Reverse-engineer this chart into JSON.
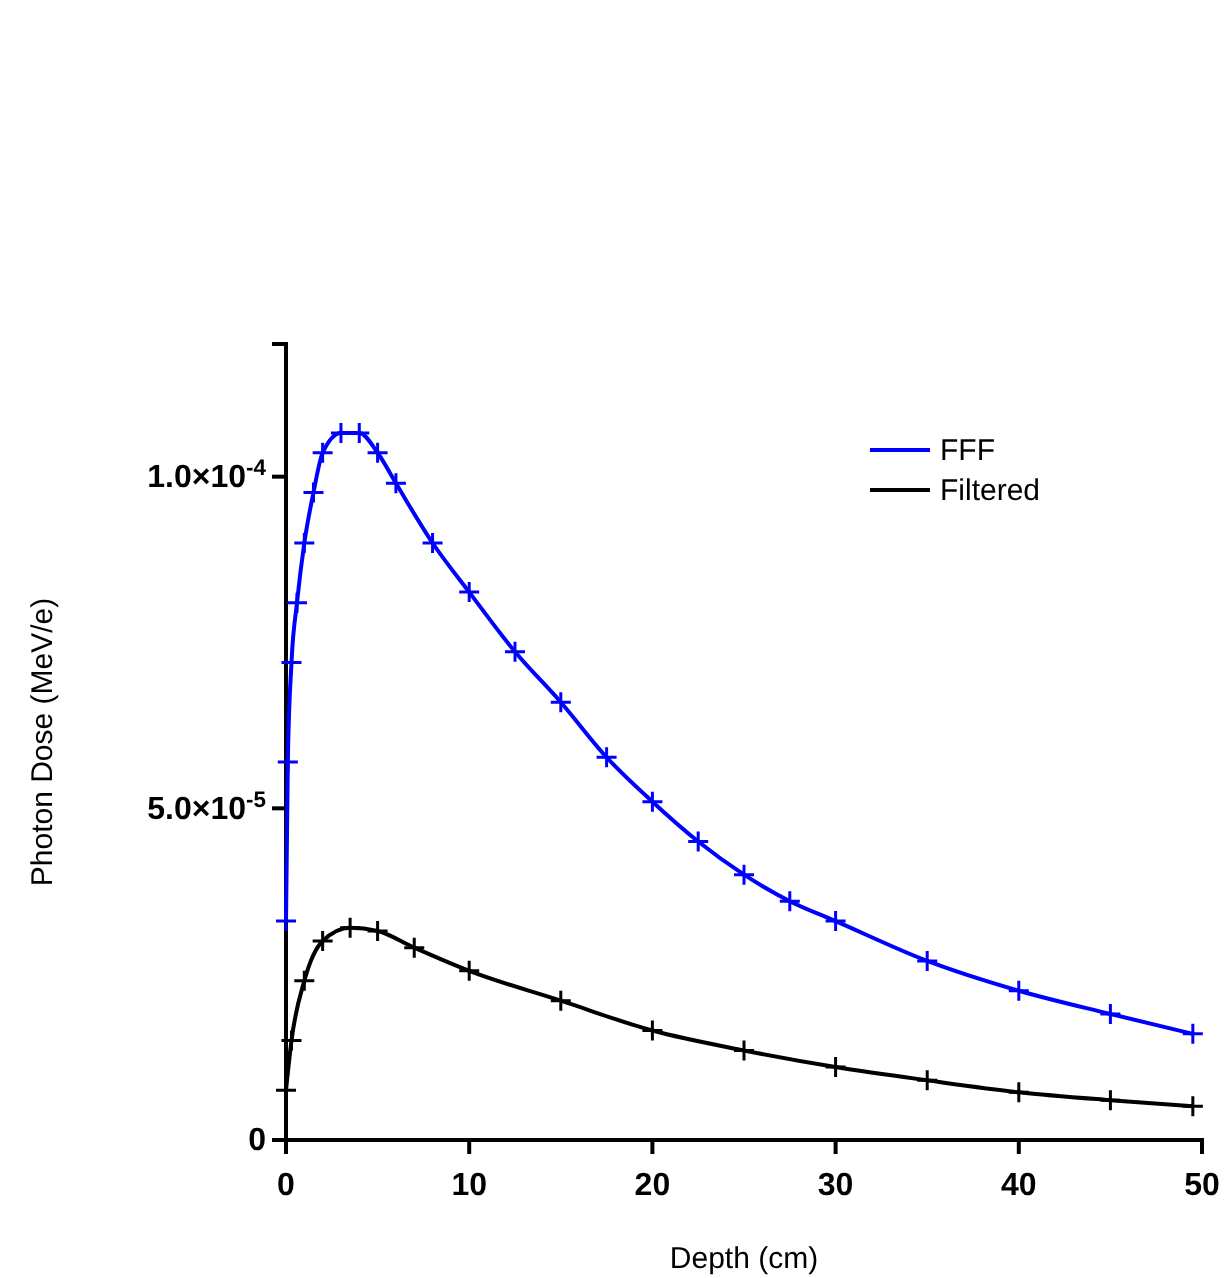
{
  "chart_data": {
    "type": "line",
    "xlabel": "Depth (cm)",
    "ylabel": "Photon Dose (MeV/e)",
    "xlim": [
      0,
      50
    ],
    "xticks": [
      0,
      10,
      20,
      30,
      40,
      50
    ],
    "ylim": [
      0,
      0.00012
    ],
    "yticks": [
      0,
      {
        "value": 5e-05,
        "label": "5.0×10$^{-5}$"
      },
      {
        "value": 0.0001,
        "label": "1.0×10$^{-4}$"
      }
    ],
    "grid": false,
    "legend": "top right",
    "marker": "cross",
    "line_style": "solid",
    "x": [
      0,
      0.1,
      0.3,
      0.6,
      1,
      1.5,
      2,
      3,
      4,
      5,
      6,
      8,
      10,
      12.5,
      15,
      17.5,
      20,
      22.5,
      25,
      27.5,
      30,
      35,
      40,
      45,
      49.5
    ],
    "series": [
      {
        "name": "FFF",
        "color": "#0000ff",
        "values": [
          3.3e-05,
          5.7e-05,
          7.2e-05,
          8.1e-05,
          9e-05,
          9.76e-05,
          0.0001036,
          0.0001066,
          0.0001066,
          0.0001036,
          9.9e-05,
          9e-05,
          8.26e-05,
          7.36e-05,
          6.6e-05,
          5.77e-05,
          5.1e-05,
          4.5e-05,
          4e-05,
          3.6e-05,
          3.3e-05,
          2.7e-05,
          2.25e-05,
          1.9e-05,
          1.6e-05
        ]
      },
      {
        "name": "Filtered",
        "color": "#000000",
        "x": [
          0,
          0.3,
          1,
          2,
          3.5,
          5,
          7,
          10,
          15,
          20,
          25,
          30,
          35,
          40,
          45,
          49.5
        ],
        "values": [
          7.5e-06,
          1.5e-05,
          2.4e-05,
          3e-05,
          3.2e-05,
          3.15e-05,
          2.9e-05,
          2.55e-05,
          2.1e-05,
          1.65e-05,
          1.35e-05,
          1.1e-05,
          9e-06,
          7.2e-06,
          6e-06,
          5.1e-06
        ]
      }
    ]
  }
}
